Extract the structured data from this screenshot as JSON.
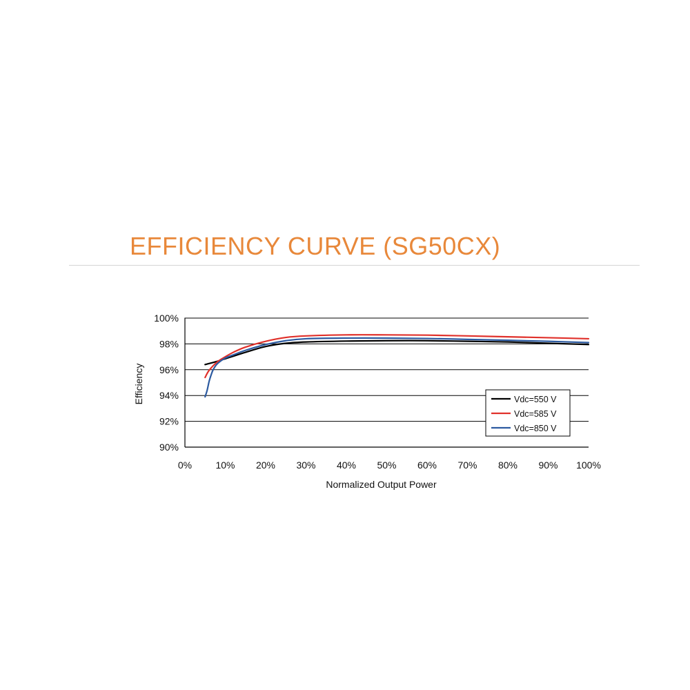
{
  "header": {
    "title": "EFFICIENCY CURVE (SG50CX)"
  },
  "colors": {
    "title": "#e8883a",
    "rule": "#d4d4d4",
    "axis": "#000000",
    "grid": "#000000"
  },
  "chart_data": {
    "type": "line",
    "title": "",
    "xlabel": "Normalized Output Power",
    "ylabel": "Efficiency",
    "xlim": [
      0,
      100
    ],
    "ylim": [
      90,
      100
    ],
    "x_ticks": [
      0,
      10,
      20,
      30,
      40,
      50,
      60,
      70,
      80,
      90,
      100
    ],
    "x_tick_labels": [
      "0%",
      "10%",
      "20%",
      "30%",
      "40%",
      "50%",
      "60%",
      "70%",
      "80%",
      "90%",
      "100%"
    ],
    "y_ticks": [
      90,
      92,
      94,
      96,
      98,
      100
    ],
    "y_tick_labels": [
      "90%",
      "92%",
      "94%",
      "96%",
      "98%",
      "100%"
    ],
    "grid": "horizontal",
    "legend_position": "bottom-right",
    "series": [
      {
        "name": "Vdc=550 V",
        "color": "#000000",
        "x": [
          5,
          8,
          10,
          12,
          15,
          20,
          25,
          30,
          40,
          50,
          60,
          70,
          80,
          90,
          100
        ],
        "values": [
          96.4,
          96.65,
          96.85,
          97.05,
          97.35,
          97.8,
          98.05,
          98.15,
          98.22,
          98.25,
          98.25,
          98.2,
          98.15,
          98.05,
          97.95
        ]
      },
      {
        "name": "Vdc=585 V",
        "color": "#e0302a",
        "x": [
          5,
          6,
          8,
          10,
          12,
          15,
          20,
          25,
          30,
          40,
          50,
          60,
          70,
          80,
          90,
          100
        ],
        "values": [
          95.4,
          95.95,
          96.6,
          97.0,
          97.35,
          97.75,
          98.2,
          98.5,
          98.62,
          98.7,
          98.7,
          98.68,
          98.62,
          98.55,
          98.48,
          98.4
        ]
      },
      {
        "name": "Vdc=850 V",
        "color": "#2c5aa0",
        "x": [
          5,
          5.5,
          6,
          6.5,
          7,
          8,
          10,
          12,
          15,
          20,
          25,
          30,
          40,
          50,
          60,
          70,
          80,
          90,
          100
        ],
        "values": [
          93.9,
          94.4,
          95.1,
          95.6,
          96.0,
          96.45,
          96.9,
          97.15,
          97.5,
          97.95,
          98.25,
          98.4,
          98.45,
          98.45,
          98.42,
          98.35,
          98.28,
          98.2,
          98.1
        ]
      }
    ]
  }
}
